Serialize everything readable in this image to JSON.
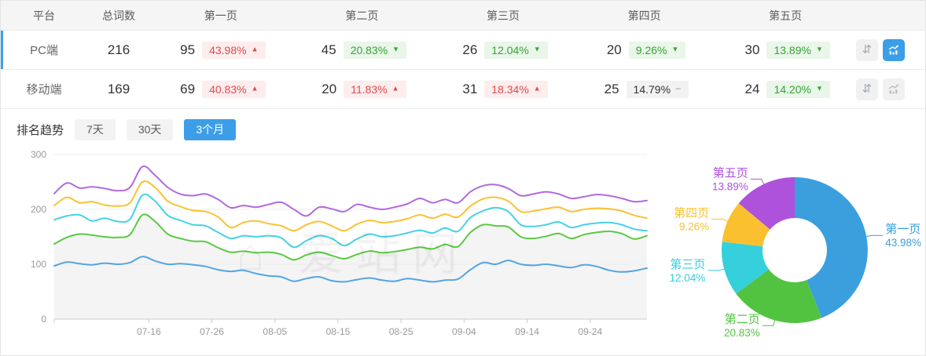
{
  "table": {
    "columns": [
      "平台",
      "总词数",
      "第一页",
      "第二页",
      "第三页",
      "第四页",
      "第五页"
    ],
    "rows": [
      {
        "platform": "PC端",
        "total": "216",
        "selected": true,
        "pages": [
          {
            "count": "95",
            "pct": "43.98%",
            "dir": "up",
            "tone": "red"
          },
          {
            "count": "45",
            "pct": "20.83%",
            "dir": "down",
            "tone": "green"
          },
          {
            "count": "26",
            "pct": "12.04%",
            "dir": "down",
            "tone": "green"
          },
          {
            "count": "20",
            "pct": "9.26%",
            "dir": "down",
            "tone": "green"
          },
          {
            "count": "30",
            "pct": "13.89%",
            "dir": "down",
            "tone": "green"
          }
        ],
        "actions": {
          "sort_enabled": true,
          "chart_active": true
        }
      },
      {
        "platform": "移动端",
        "total": "169",
        "selected": false,
        "pages": [
          {
            "count": "69",
            "pct": "40.83%",
            "dir": "up",
            "tone": "red"
          },
          {
            "count": "20",
            "pct": "11.83%",
            "dir": "up",
            "tone": "red"
          },
          {
            "count": "31",
            "pct": "18.34%",
            "dir": "up",
            "tone": "red"
          },
          {
            "count": "25",
            "pct": "14.79%",
            "dir": "flat",
            "tone": "grey"
          },
          {
            "count": "24",
            "pct": "14.20%",
            "dir": "down",
            "tone": "green"
          }
        ],
        "actions": {
          "sort_enabled": true,
          "chart_active": false
        }
      }
    ]
  },
  "trend": {
    "label": "排名趋势",
    "tabs": [
      {
        "label": "7天",
        "active": false
      },
      {
        "label": "30天",
        "active": false
      },
      {
        "label": "3个月",
        "active": true
      }
    ]
  },
  "watermark": {
    "icon": "⌂",
    "text": "爱站网"
  },
  "icons": {
    "sort": "⇵",
    "arrow_up": "▲",
    "arrow_down": "▼",
    "arrow_flat": "−"
  },
  "colors": {
    "accent_blue": "#3d9ee8",
    "badge_red_text": "#e04b4b",
    "badge_red_bg": "#fdeded",
    "badge_green_text": "#35a535",
    "badge_green_bg": "#e9f6e9",
    "badge_grey_text": "#333333",
    "badge_grey_bg": "#f2f2f2",
    "grid_line": "#ececec",
    "axis_line": "#cccccc",
    "axis_text": "#999999",
    "area_fill": "#f4f4f5"
  },
  "chart_data": [
    {
      "type": "line",
      "title": "排名趋势 (3个月)",
      "grid": true,
      "legend": "none",
      "ylim": [
        0,
        300
      ],
      "y_ticks": [
        0,
        100,
        200,
        300
      ],
      "x_tick_labels": [
        "07-16",
        "07-26",
        "08-05",
        "08-15",
        "08-25",
        "09-04",
        "09-14",
        "09-24"
      ],
      "x_tick_days": [
        15,
        25,
        35,
        45,
        55,
        65,
        75,
        85
      ],
      "x_range_days": [
        0,
        94
      ],
      "sample_step_days": 2,
      "series": [
        {
          "name": "第一页",
          "color": "#53a5e3",
          "fill": false,
          "values": [
            97,
            104,
            101,
            99,
            102,
            100,
            103,
            114,
            106,
            100,
            101,
            99,
            96,
            90,
            87,
            89,
            83,
            79,
            77,
            69,
            74,
            77,
            70,
            68,
            72,
            75,
            71,
            69,
            74,
            71,
            68,
            71,
            73,
            90,
            103,
            100,
            107,
            100,
            98,
            100,
            97,
            94,
            99,
            96,
            89,
            86,
            88,
            93
          ]
        },
        {
          "name": "第二页",
          "color": "#5cc944",
          "fill": true,
          "values": [
            137,
            149,
            155,
            153,
            150,
            149,
            154,
            190,
            178,
            155,
            147,
            142,
            141,
            130,
            122,
            124,
            121,
            122,
            118,
            108,
            117,
            122,
            116,
            110,
            118,
            124,
            121,
            123,
            127,
            131,
            128,
            136,
            132,
            158,
            172,
            170,
            168,
            150,
            147,
            151,
            156,
            147,
            154,
            158,
            160,
            156,
            146,
            152
          ]
        },
        {
          "name": "第三页",
          "color": "#46d2e2",
          "fill": false,
          "values": [
            181,
            188,
            190,
            179,
            184,
            178,
            182,
            226,
            215,
            189,
            180,
            172,
            170,
            158,
            147,
            152,
            150,
            152,
            148,
            131,
            143,
            152,
            147,
            134,
            146,
            155,
            150,
            152,
            157,
            162,
            157,
            166,
            160,
            185,
            197,
            203,
            196,
            172,
            169,
            172,
            177,
            167,
            172,
            175,
            176,
            172,
            164,
            161
          ]
        },
        {
          "name": "第四页",
          "color": "#f9c233",
          "fill": false,
          "values": [
            207,
            222,
            212,
            214,
            208,
            206,
            212,
            250,
            240,
            215,
            205,
            198,
            196,
            186,
            167,
            176,
            179,
            174,
            170,
            161,
            172,
            178,
            170,
            161,
            173,
            180,
            176,
            178,
            183,
            190,
            184,
            191,
            186,
            206,
            219,
            222,
            215,
            196,
            197,
            201,
            204,
            196,
            200,
            202,
            201,
            197,
            189,
            184
          ]
        },
        {
          "name": "第五页",
          "color": "#b16ade",
          "fill": false,
          "values": [
            229,
            248,
            239,
            241,
            238,
            234,
            240,
            278,
            262,
            240,
            228,
            225,
            228,
            218,
            203,
            207,
            204,
            209,
            213,
            200,
            188,
            204,
            201,
            196,
            209,
            204,
            200,
            204,
            210,
            220,
            212,
            218,
            212,
            232,
            243,
            245,
            238,
            225,
            228,
            232,
            228,
            220,
            223,
            227,
            225,
            220,
            214,
            216
          ]
        }
      ]
    },
    {
      "type": "pie",
      "donut": true,
      "labels": [
        "第一页",
        "第二页",
        "第三页",
        "第四页",
        "第五页"
      ],
      "values": [
        43.98,
        20.83,
        12.04,
        9.26,
        13.89
      ],
      "value_labels": [
        "43.98%",
        "20.83%",
        "12.04%",
        "9.26%",
        "13.89%"
      ],
      "colors": [
        "#3b9fde",
        "#52c341",
        "#35d0dc",
        "#fbc02f",
        "#ae52dc"
      ],
      "legend": "none"
    }
  ]
}
